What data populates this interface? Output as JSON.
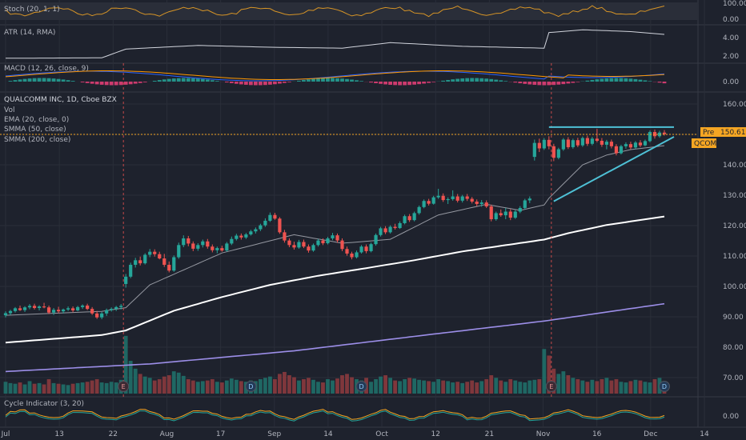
{
  "chart_data": {
    "type": "candlestick",
    "title": "QUALCOMM INC, 1D, Cboe BZX",
    "main_labels": [
      "Vol",
      "EMA (20, close, 0)",
      "SMMA (50, close)",
      "SMMA (200, close)"
    ],
    "price_axis": {
      "ticks": [
        160,
        150,
        140,
        130,
        120,
        110,
        100,
        90,
        80,
        70
      ],
      "tick_labels": [
        "160.00",
        "150.00",
        "140.00",
        "130.00",
        "120.00",
        "110.00",
        "100.00",
        "90.00",
        "80.00",
        "70.00"
      ]
    },
    "x_axis": {
      "tick_labels": [
        "Jul",
        "13",
        "22",
        "Aug",
        "17",
        "Sep",
        "14",
        "Oct",
        "12",
        "21",
        "Nov",
        "16",
        "Dec",
        "14"
      ]
    },
    "event_markers": [
      {
        "label": "E",
        "after_candle": 24
      },
      {
        "label": "D",
        "after_candle": 51
      },
      {
        "label": "D",
        "after_candle": 74
      },
      {
        "label": "E",
        "after_candle": 113
      },
      {
        "label": "D",
        "after_candle": 137
      }
    ],
    "candles": [
      {
        "o": 90.5,
        "h": 91.8,
        "l": 89.8,
        "c": 91.2
      },
      {
        "o": 91.2,
        "h": 92.3,
        "l": 90.6,
        "c": 91.9
      },
      {
        "o": 91.9,
        "h": 93.2,
        "l": 91.4,
        "c": 92.8
      },
      {
        "o": 92.8,
        "h": 93.7,
        "l": 91.9,
        "c": 92.2
      },
      {
        "o": 92.2,
        "h": 93.5,
        "l": 91.6,
        "c": 93.1
      },
      {
        "o": 93.1,
        "h": 94.2,
        "l": 92.5,
        "c": 93.6
      },
      {
        "o": 93.6,
        "h": 94.3,
        "l": 92.4,
        "c": 92.9
      },
      {
        "o": 92.9,
        "h": 93.8,
        "l": 92.1,
        "c": 93.4
      },
      {
        "o": 93.4,
        "h": 94.6,
        "l": 92.8,
        "c": 93.1
      },
      {
        "o": 93.1,
        "h": 93.7,
        "l": 90.9,
        "c": 91.4
      },
      {
        "o": 91.4,
        "h": 92.9,
        "l": 90.6,
        "c": 92.3
      },
      {
        "o": 92.3,
        "h": 93.3,
        "l": 91.2,
        "c": 91.8
      },
      {
        "o": 91.8,
        "h": 92.7,
        "l": 91.1,
        "c": 92.4
      },
      {
        "o": 92.4,
        "h": 93.4,
        "l": 91.9,
        "c": 92.8
      },
      {
        "o": 92.8,
        "h": 93.4,
        "l": 91.5,
        "c": 92.1
      },
      {
        "o": 92.1,
        "h": 93.6,
        "l": 91.8,
        "c": 93.2
      },
      {
        "o": 93.2,
        "h": 94.1,
        "l": 92.6,
        "c": 93.7
      },
      {
        "o": 93.7,
        "h": 94.3,
        "l": 92.2,
        "c": 92.6
      },
      {
        "o": 92.6,
        "h": 93.2,
        "l": 90.6,
        "c": 91.1
      },
      {
        "o": 91.1,
        "h": 91.9,
        "l": 89.3,
        "c": 89.8
      },
      {
        "o": 89.8,
        "h": 91.6,
        "l": 89.2,
        "c": 91.1
      },
      {
        "o": 91.1,
        "h": 92.7,
        "l": 90.3,
        "c": 92.2
      },
      {
        "o": 92.2,
        "h": 93.1,
        "l": 91.7,
        "c": 92.6
      },
      {
        "o": 92.6,
        "h": 93.6,
        "l": 91.9,
        "c": 93.2
      },
      {
        "o": 93.2,
        "h": 94.2,
        "l": 92.4,
        "c": 93.6
      },
      {
        "o": 100.8,
        "h": 104.1,
        "l": 99.6,
        "c": 103.2
      },
      {
        "o": 103.2,
        "h": 107.8,
        "l": 102.7,
        "c": 107.1
      },
      {
        "o": 107.1,
        "h": 109.4,
        "l": 106.2,
        "c": 108.6
      },
      {
        "o": 108.6,
        "h": 109.8,
        "l": 106.9,
        "c": 107.6
      },
      {
        "o": 107.6,
        "h": 110.9,
        "l": 107.2,
        "c": 110.4
      },
      {
        "o": 110.4,
        "h": 112.3,
        "l": 109.6,
        "c": 111.4
      },
      {
        "o": 111.4,
        "h": 112.2,
        "l": 109.8,
        "c": 110.6
      },
      {
        "o": 110.6,
        "h": 111.4,
        "l": 108.9,
        "c": 109.2
      },
      {
        "o": 109.2,
        "h": 110.7,
        "l": 106.4,
        "c": 107.1
      },
      {
        "o": 107.1,
        "h": 108.2,
        "l": 104.6,
        "c": 105.2
      },
      {
        "o": 105.2,
        "h": 110.2,
        "l": 104.8,
        "c": 109.6
      },
      {
        "o": 109.6,
        "h": 114.4,
        "l": 109.1,
        "c": 113.6
      },
      {
        "o": 113.6,
        "h": 116.8,
        "l": 112.9,
        "c": 115.8
      },
      {
        "o": 115.8,
        "h": 116.6,
        "l": 113.2,
        "c": 114.1
      },
      {
        "o": 114.1,
        "h": 114.8,
        "l": 111.6,
        "c": 112.4
      },
      {
        "o": 112.4,
        "h": 114.2,
        "l": 111.7,
        "c": 113.6
      },
      {
        "o": 113.6,
        "h": 115.4,
        "l": 112.8,
        "c": 114.8
      },
      {
        "o": 114.8,
        "h": 115.6,
        "l": 112.4,
        "c": 113.1
      },
      {
        "o": 113.1,
        "h": 113.8,
        "l": 111.2,
        "c": 111.9
      },
      {
        "o": 111.9,
        "h": 113.1,
        "l": 110.9,
        "c": 112.6
      },
      {
        "o": 112.6,
        "h": 113.4,
        "l": 111.4,
        "c": 111.8
      },
      {
        "o": 111.8,
        "h": 114.6,
        "l": 111.4,
        "c": 114.1
      },
      {
        "o": 114.1,
        "h": 116.4,
        "l": 113.6,
        "c": 115.6
      },
      {
        "o": 115.6,
        "h": 117.3,
        "l": 115.1,
        "c": 116.7
      },
      {
        "o": 116.7,
        "h": 117.4,
        "l": 115.4,
        "c": 116.1
      },
      {
        "o": 116.1,
        "h": 117.6,
        "l": 115.6,
        "c": 117.1
      },
      {
        "o": 117.1,
        "h": 118.6,
        "l": 116.7,
        "c": 118.1
      },
      {
        "o": 118.1,
        "h": 119.4,
        "l": 117.4,
        "c": 118.8
      },
      {
        "o": 118.8,
        "h": 120.6,
        "l": 118.2,
        "c": 120.1
      },
      {
        "o": 120.1,
        "h": 122.4,
        "l": 119.6,
        "c": 121.6
      },
      {
        "o": 121.6,
        "h": 124.3,
        "l": 121.2,
        "c": 123.5
      },
      {
        "o": 123.5,
        "h": 124.2,
        "l": 121.9,
        "c": 122.3
      },
      {
        "o": 122.3,
        "h": 122.8,
        "l": 117.3,
        "c": 117.8
      },
      {
        "o": 117.8,
        "h": 118.6,
        "l": 114.4,
        "c": 115.1
      },
      {
        "o": 115.1,
        "h": 115.8,
        "l": 112.9,
        "c": 113.6
      },
      {
        "o": 113.6,
        "h": 114.7,
        "l": 112.1,
        "c": 112.8
      },
      {
        "o": 112.8,
        "h": 115.3,
        "l": 112.4,
        "c": 114.6
      },
      {
        "o": 114.6,
        "h": 115.4,
        "l": 112.6,
        "c": 113.1
      },
      {
        "o": 113.1,
        "h": 113.8,
        "l": 111.1,
        "c": 111.8
      },
      {
        "o": 111.8,
        "h": 114.1,
        "l": 111.4,
        "c": 113.6
      },
      {
        "o": 113.6,
        "h": 115.6,
        "l": 113.1,
        "c": 115.1
      },
      {
        "o": 115.1,
        "h": 115.8,
        "l": 113.6,
        "c": 114.2
      },
      {
        "o": 114.2,
        "h": 116.3,
        "l": 113.8,
        "c": 115.8
      },
      {
        "o": 115.8,
        "h": 117.6,
        "l": 115.2,
        "c": 116.8
      },
      {
        "o": 116.8,
        "h": 117.4,
        "l": 114.4,
        "c": 115.1
      },
      {
        "o": 115.1,
        "h": 115.8,
        "l": 111.6,
        "c": 112.3
      },
      {
        "o": 112.3,
        "h": 113.1,
        "l": 110.1,
        "c": 110.8
      },
      {
        "o": 110.8,
        "h": 111.4,
        "l": 108.9,
        "c": 109.6
      },
      {
        "o": 109.6,
        "h": 111.8,
        "l": 109.2,
        "c": 111.2
      },
      {
        "o": 111.2,
        "h": 113.6,
        "l": 110.8,
        "c": 113.1
      },
      {
        "o": 113.1,
        "h": 113.8,
        "l": 110.9,
        "c": 111.6
      },
      {
        "o": 111.6,
        "h": 114.4,
        "l": 111.2,
        "c": 113.9
      },
      {
        "o": 113.9,
        "h": 117.4,
        "l": 113.4,
        "c": 116.9
      },
      {
        "o": 116.9,
        "h": 119.6,
        "l": 116.4,
        "c": 119.1
      },
      {
        "o": 119.1,
        "h": 119.8,
        "l": 117.2,
        "c": 117.8
      },
      {
        "o": 117.8,
        "h": 120.1,
        "l": 117.4,
        "c": 119.6
      },
      {
        "o": 119.6,
        "h": 120.6,
        "l": 118.7,
        "c": 119.2
      },
      {
        "o": 119.2,
        "h": 121.4,
        "l": 118.9,
        "c": 120.8
      },
      {
        "o": 120.8,
        "h": 123.6,
        "l": 120.4,
        "c": 123.1
      },
      {
        "o": 123.1,
        "h": 123.8,
        "l": 121.2,
        "c": 121.8
      },
      {
        "o": 121.8,
        "h": 124.6,
        "l": 121.4,
        "c": 124.1
      },
      {
        "o": 124.1,
        "h": 126.6,
        "l": 123.6,
        "c": 126.1
      },
      {
        "o": 126.1,
        "h": 128.6,
        "l": 125.7,
        "c": 128.1
      },
      {
        "o": 128.1,
        "h": 128.8,
        "l": 126.6,
        "c": 127.2
      },
      {
        "o": 127.2,
        "h": 129.8,
        "l": 126.9,
        "c": 129.3
      },
      {
        "o": 129.3,
        "h": 132.1,
        "l": 128.8,
        "c": 129.8
      },
      {
        "o": 129.8,
        "h": 130.6,
        "l": 127.8,
        "c": 128.4
      },
      {
        "o": 128.4,
        "h": 129.3,
        "l": 127.1,
        "c": 128.7
      },
      {
        "o": 128.7,
        "h": 131.6,
        "l": 128.2,
        "c": 129.6
      },
      {
        "o": 129.6,
        "h": 130.4,
        "l": 127.6,
        "c": 128.2
      },
      {
        "o": 128.2,
        "h": 130.1,
        "l": 127.6,
        "c": 129.6
      },
      {
        "o": 129.6,
        "h": 130.4,
        "l": 128.1,
        "c": 128.8
      },
      {
        "o": 128.8,
        "h": 129.4,
        "l": 127.3,
        "c": 127.9
      },
      {
        "o": 127.9,
        "h": 128.6,
        "l": 126.4,
        "c": 127.1
      },
      {
        "o": 127.1,
        "h": 128.4,
        "l": 126.2,
        "c": 127.6
      },
      {
        "o": 127.6,
        "h": 128.3,
        "l": 125.8,
        "c": 126.3
      },
      {
        "o": 126.3,
        "h": 126.9,
        "l": 121.4,
        "c": 122.1
      },
      {
        "o": 122.1,
        "h": 124.6,
        "l": 121.6,
        "c": 124.1
      },
      {
        "o": 124.1,
        "h": 125.3,
        "l": 122.9,
        "c": 123.4
      },
      {
        "o": 123.4,
        "h": 125.8,
        "l": 122.1,
        "c": 124.6
      },
      {
        "o": 124.6,
        "h": 125.4,
        "l": 121.8,
        "c": 122.6
      },
      {
        "o": 122.6,
        "h": 125.1,
        "l": 122.2,
        "c": 124.6
      },
      {
        "o": 124.6,
        "h": 126.4,
        "l": 124.1,
        "c": 125.8
      },
      {
        "o": 125.8,
        "h": 128.8,
        "l": 125.3,
        "c": 128.3
      },
      {
        "o": 128.3,
        "h": 129.6,
        "l": 127.4,
        "c": 128.9
      },
      {
        "o": 142.6,
        "h": 148.3,
        "l": 141.4,
        "c": 147.2
      },
      {
        "o": 147.2,
        "h": 148.6,
        "l": 144.2,
        "c": 145.4
      },
      {
        "o": 145.4,
        "h": 148.8,
        "l": 144.9,
        "c": 148.2
      },
      {
        "o": 148.2,
        "h": 149.4,
        "l": 145.1,
        "c": 146.1
      },
      {
        "o": 146.1,
        "h": 146.9,
        "l": 141.2,
        "c": 142.3
      },
      {
        "o": 142.3,
        "h": 145.6,
        "l": 141.8,
        "c": 145.1
      },
      {
        "o": 145.1,
        "h": 148.8,
        "l": 144.6,
        "c": 148.3
      },
      {
        "o": 148.3,
        "h": 149.1,
        "l": 145.2,
        "c": 145.8
      },
      {
        "o": 145.8,
        "h": 148.6,
        "l": 145.3,
        "c": 148.1
      },
      {
        "o": 148.1,
        "h": 148.9,
        "l": 145.8,
        "c": 146.4
      },
      {
        "o": 146.4,
        "h": 149.3,
        "l": 145.9,
        "c": 148.8
      },
      {
        "o": 148.8,
        "h": 149.6,
        "l": 146.2,
        "c": 146.9
      },
      {
        "o": 146.9,
        "h": 149.2,
        "l": 146.4,
        "c": 148.6
      },
      {
        "o": 148.6,
        "h": 151.8,
        "l": 147.4,
        "c": 147.9
      },
      {
        "o": 147.9,
        "h": 148.8,
        "l": 145.9,
        "c": 146.6
      },
      {
        "o": 146.6,
        "h": 148.2,
        "l": 145.1,
        "c": 147.6
      },
      {
        "o": 147.6,
        "h": 148.3,
        "l": 145.4,
        "c": 146.1
      },
      {
        "o": 146.1,
        "h": 146.8,
        "l": 143.1,
        "c": 143.8
      },
      {
        "o": 143.8,
        "h": 146.6,
        "l": 143.4,
        "c": 146.1
      },
      {
        "o": 146.1,
        "h": 147.4,
        "l": 145.3,
        "c": 146.8
      },
      {
        "o": 146.8,
        "h": 147.6,
        "l": 145.1,
        "c": 145.7
      },
      {
        "o": 145.7,
        "h": 147.8,
        "l": 145.2,
        "c": 147.3
      },
      {
        "o": 147.3,
        "h": 148.1,
        "l": 145.8,
        "c": 146.4
      },
      {
        "o": 146.4,
        "h": 148.3,
        "l": 146.1,
        "c": 147.8
      },
      {
        "o": 147.8,
        "h": 151.3,
        "l": 147.4,
        "c": 150.8
      },
      {
        "o": 150.8,
        "h": 151.6,
        "l": 148.6,
        "c": 149.4
      },
      {
        "o": 149.4,
        "h": 151.2,
        "l": 148.9,
        "c": 150.6
      },
      {
        "o": 150.6,
        "h": 151.4,
        "l": 149.6,
        "c": 150.1
      }
    ],
    "volume": [
      18,
      16,
      15,
      17,
      14,
      19,
      15,
      16,
      14,
      22,
      16,
      15,
      14,
      13,
      15,
      16,
      17,
      18,
      20,
      22,
      17,
      16,
      18,
      17,
      21,
      88,
      50,
      38,
      30,
      26,
      24,
      20,
      22,
      26,
      28,
      34,
      32,
      27,
      22,
      20,
      18,
      19,
      20,
      22,
      18,
      17,
      20,
      23,
      21,
      19,
      18,
      20,
      19,
      22,
      24,
      26,
      22,
      30,
      33,
      28,
      25,
      20,
      22,
      24,
      21,
      18,
      17,
      22,
      20,
      23,
      28,
      30,
      25,
      22,
      20,
      24,
      18,
      22,
      26,
      28,
      24,
      20,
      19,
      22,
      24,
      23,
      21,
      20,
      19,
      18,
      22,
      20,
      19,
      17,
      18,
      16,
      18,
      20,
      17,
      19,
      22,
      28,
      24,
      20,
      18,
      22,
      20,
      18,
      17,
      20,
      21,
      22,
      68,
      58,
      38,
      30,
      34,
      28,
      24,
      22,
      20,
      18,
      21,
      19,
      22,
      24,
      20,
      22,
      18,
      17,
      19,
      21,
      20,
      18,
      17,
      22,
      24,
      15
    ],
    "ema20_at": [
      [
        0,
        90.5
      ],
      [
        20,
        91.8
      ],
      [
        25,
        93.0
      ],
      [
        30,
        100.5
      ],
      [
        35,
        104.0
      ],
      [
        45,
        111.0
      ],
      [
        55,
        115.0
      ],
      [
        60,
        117.0
      ],
      [
        70,
        114.2
      ],
      [
        80,
        115.5
      ],
      [
        90,
        123.5
      ],
      [
        100,
        127.0
      ],
      [
        107,
        125.0
      ],
      [
        112,
        126.8
      ],
      [
        113,
        129.0
      ],
      [
        120,
        140.0
      ],
      [
        125,
        143.2
      ],
      [
        130,
        145.0
      ],
      [
        137,
        146.3
      ]
    ],
    "smma50_at": [
      [
        0,
        81.5
      ],
      [
        20,
        84.0
      ],
      [
        25,
        85.5
      ],
      [
        35,
        92.0
      ],
      [
        45,
        96.5
      ],
      [
        55,
        100.5
      ],
      [
        65,
        103.5
      ],
      [
        75,
        106.0
      ],
      [
        85,
        108.6
      ],
      [
        95,
        111.5
      ],
      [
        105,
        113.8
      ],
      [
        112,
        115.4
      ],
      [
        117,
        117.5
      ],
      [
        125,
        120.2
      ],
      [
        137,
        123.0
      ]
    ],
    "smma200_at": [
      [
        0,
        72.0
      ],
      [
        30,
        74.5
      ],
      [
        60,
        78.8
      ],
      [
        90,
        84.5
      ],
      [
        112,
        88.6
      ],
      [
        137,
        94.3
      ]
    ],
    "resistance_line": {
      "from_candle": 113,
      "to_candle": 139,
      "price": 152.4
    },
    "support_line": {
      "from": [
        114,
        128.0
      ],
      "to": [
        139,
        149.2
      ]
    },
    "current_price_line": 150.0,
    "tags": {
      "pre_label": "Pre",
      "pre_value": "150.61",
      "ticker": "QCOM"
    },
    "stoch": {
      "label": "Stoch (20, 1, 1)",
      "ticks": [
        "100.00",
        "0.00"
      ]
    },
    "atr": {
      "label": "ATR (14, RMA)",
      "ticks": [
        "4.00",
        "2.00"
      ],
      "at": [
        [
          0,
          1.9
        ],
        [
          20,
          1.95
        ],
        [
          25,
          2.9
        ],
        [
          40,
          3.3
        ],
        [
          55,
          3.1
        ],
        [
          70,
          3.0
        ],
        [
          80,
          3.6
        ],
        [
          95,
          3.2
        ],
        [
          112,
          3.0
        ],
        [
          113,
          4.7
        ],
        [
          120,
          5.0
        ],
        [
          130,
          4.8
        ],
        [
          137,
          4.5
        ]
      ]
    },
    "macd": {
      "label": "MACD (12, 26, close, 9)",
      "ticks": [
        "0.00"
      ]
    },
    "cycle": {
      "label": "Cycle Indicator (3, 20)",
      "ticks": [
        "0.00"
      ]
    },
    "colors": {
      "up": "#26a69a",
      "down": "#ef5350",
      "ema": "#9598a1",
      "smma50": "#ffffff",
      "smma200": "#9c8ee8",
      "trend": "#4ec1d6",
      "price": "#f5a623"
    }
  }
}
